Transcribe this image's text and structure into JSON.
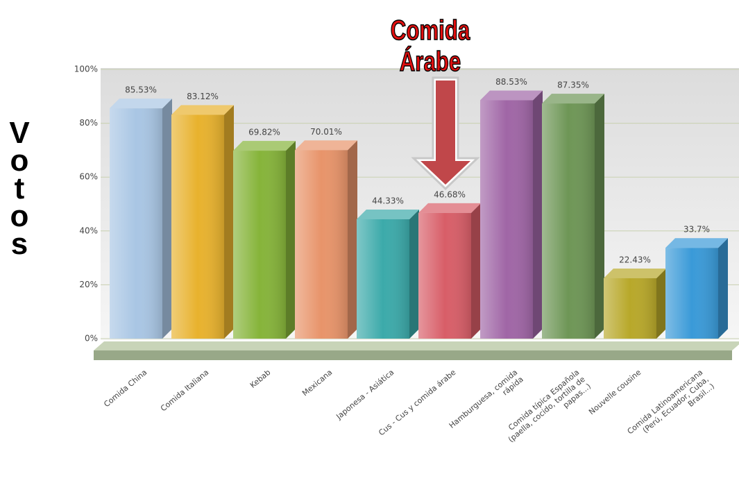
{
  "chart_data": {
    "type": "bar3d",
    "annotation": "Comida Árabe",
    "y_label": "Votos",
    "categories": [
      "Comida China",
      "Comida Italiana",
      "Kebab",
      "Mexicana",
      "Japonesa - Asiática",
      "Cus - Cus y comida árabe",
      "Hamburguesa, comida rápida",
      "Comida típica Española (paella, cocido, tortilla de papas...)",
      "Nouvelle cousine",
      "Comida Latinoamericana (Perú, Ecuador, Cuba, Brasil...)"
    ],
    "values": [
      85.53,
      83.12,
      69.82,
      70.01,
      44.33,
      46.68,
      88.53,
      87.35,
      22.43,
      33.7
    ],
    "value_labels": [
      "85.53%",
      "83.12%",
      "69.82%",
      "70.01%",
      "44.33%",
      "46.68%",
      "88.53%",
      "87.35%",
      "22.43%",
      "33.7%"
    ],
    "colors": [
      "#a9c6e4",
      "#e8b22e",
      "#86b43a",
      "#e8946a",
      "#3caaaa",
      "#d85e68",
      "#a066a6",
      "#6e9656",
      "#b8a82a",
      "#3a9ad8"
    ],
    "ylim": [
      0,
      100
    ],
    "yticks": [
      {
        "value": 0,
        "label": "0%"
      },
      {
        "value": 20,
        "label": "20%"
      },
      {
        "value": 40,
        "label": "40%"
      },
      {
        "value": 60,
        "label": "60%"
      },
      {
        "value": 80,
        "label": "80%"
      },
      {
        "value": 100,
        "label": "100%"
      }
    ],
    "grid": true
  }
}
